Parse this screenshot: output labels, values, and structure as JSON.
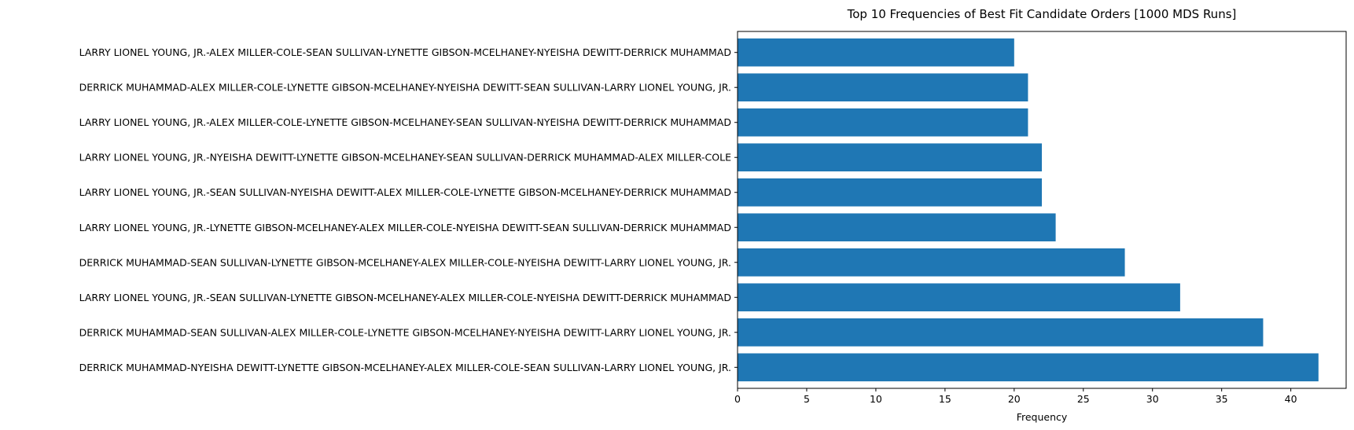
{
  "chart_data": {
    "type": "bar",
    "orientation": "horizontal",
    "title": "Top 10 Frequencies of Best Fit Candidate Orders [1000 MDS Runs]",
    "xlabel": "Frequency",
    "ylabel": "",
    "xlim": [
      0,
      44
    ],
    "x_ticks": [
      0,
      5,
      10,
      15,
      20,
      25,
      30,
      35,
      40
    ],
    "grid": false,
    "bar_color": "#1f77b4",
    "categories": [
      "LARRY LIONEL YOUNG, JR.-ALEX MILLER-COLE-SEAN SULLIVAN-LYNETTE GIBSON-MCELHANEY-NYEISHA DEWITT-DERRICK MUHAMMAD",
      "DERRICK MUHAMMAD-ALEX MILLER-COLE-LYNETTE GIBSON-MCELHANEY-NYEISHA DEWITT-SEAN SULLIVAN-LARRY LIONEL YOUNG, JR.",
      "LARRY LIONEL YOUNG, JR.-ALEX MILLER-COLE-LYNETTE GIBSON-MCELHANEY-SEAN SULLIVAN-NYEISHA DEWITT-DERRICK MUHAMMAD",
      "LARRY LIONEL YOUNG, JR.-NYEISHA DEWITT-LYNETTE GIBSON-MCELHANEY-SEAN SULLIVAN-DERRICK MUHAMMAD-ALEX MILLER-COLE",
      "LARRY LIONEL YOUNG, JR.-SEAN SULLIVAN-NYEISHA DEWITT-ALEX MILLER-COLE-LYNETTE GIBSON-MCELHANEY-DERRICK MUHAMMAD",
      "LARRY LIONEL YOUNG, JR.-LYNETTE GIBSON-MCELHANEY-ALEX MILLER-COLE-NYEISHA DEWITT-SEAN SULLIVAN-DERRICK MUHAMMAD",
      "DERRICK MUHAMMAD-SEAN SULLIVAN-LYNETTE GIBSON-MCELHANEY-ALEX MILLER-COLE-NYEISHA DEWITT-LARRY LIONEL YOUNG, JR.",
      "LARRY LIONEL YOUNG, JR.-SEAN SULLIVAN-LYNETTE GIBSON-MCELHANEY-ALEX MILLER-COLE-NYEISHA DEWITT-DERRICK MUHAMMAD",
      "DERRICK MUHAMMAD-SEAN SULLIVAN-ALEX MILLER-COLE-LYNETTE GIBSON-MCELHANEY-NYEISHA DEWITT-LARRY LIONEL YOUNG, JR.",
      "DERRICK MUHAMMAD-NYEISHA DEWITT-LYNETTE GIBSON-MCELHANEY-ALEX MILLER-COLE-SEAN SULLIVAN-LARRY LIONEL YOUNG, JR."
    ],
    "values": [
      20,
      21,
      21,
      22,
      22,
      23,
      28,
      32,
      38,
      42
    ]
  }
}
